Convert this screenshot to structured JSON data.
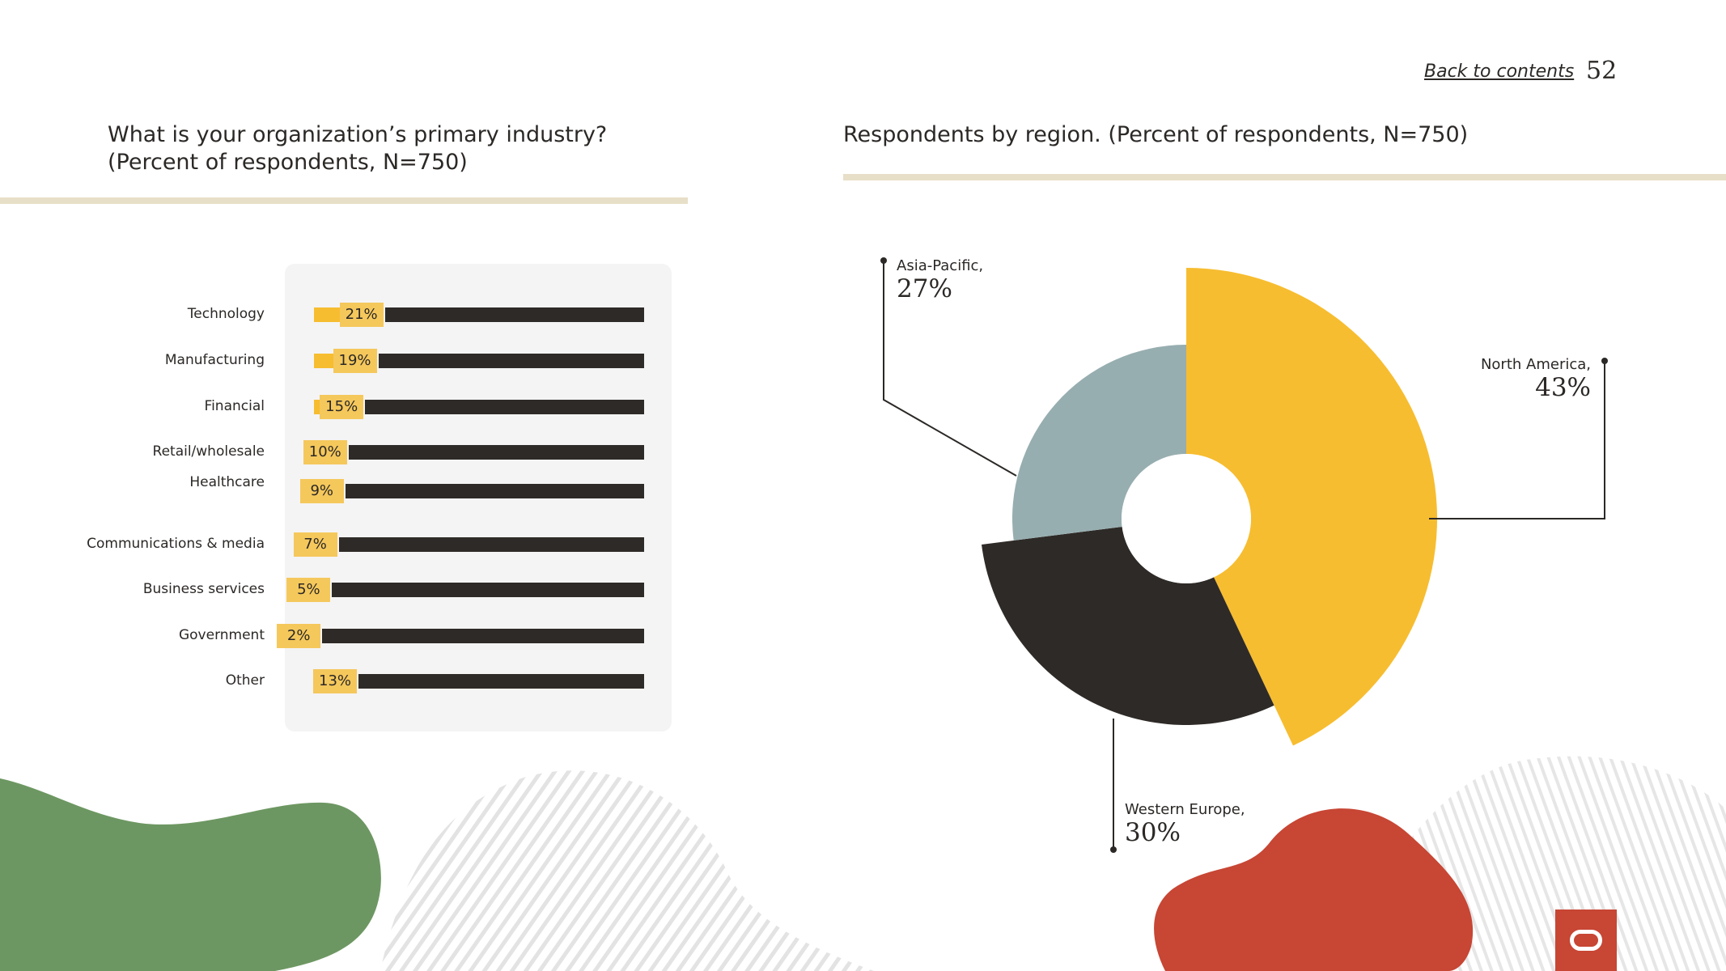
{
  "header": {
    "back_link": "Back to contents",
    "page_number": "52"
  },
  "left_chart": {
    "title_line1": "What is your organization’s primary industry?",
    "title_line2": "(Percent of respondents, N=750)"
  },
  "right_chart": {
    "title": "Respondents by region. (Percent of respondents, N=750)"
  },
  "colors": {
    "yellow": "#f7bd30",
    "dark": "#2e2a27",
    "grey_blue": "#97aeb0",
    "rule": "#e7dfc7",
    "green_blob": "#6d9762",
    "red_blob": "#c74634"
  },
  "chart_data": [
    {
      "type": "bar",
      "orientation": "horizontal",
      "categories": [
        "Technology",
        "Manufacturing",
        "Financial",
        "Retail/wholesale",
        "Healthcare",
        "Communications & media",
        "Business services",
        "Government",
        "Other"
      ],
      "values": [
        21,
        19,
        15,
        10,
        9,
        7,
        5,
        2,
        13
      ],
      "value_labels": [
        "21%",
        "19%",
        "15%",
        "10%",
        "9%",
        "7%",
        "5%",
        "2%",
        "13%"
      ],
      "xlim": [
        0,
        100
      ]
    },
    {
      "type": "pie",
      "labels": [
        "North America,",
        "Western Europe,",
        "Asia-Pacific,"
      ],
      "values": [
        43,
        30,
        27
      ],
      "value_labels": [
        "43%",
        "30%",
        "27%"
      ],
      "colors": [
        "#f7bd30",
        "#2e2a27",
        "#97aeb0"
      ]
    }
  ]
}
